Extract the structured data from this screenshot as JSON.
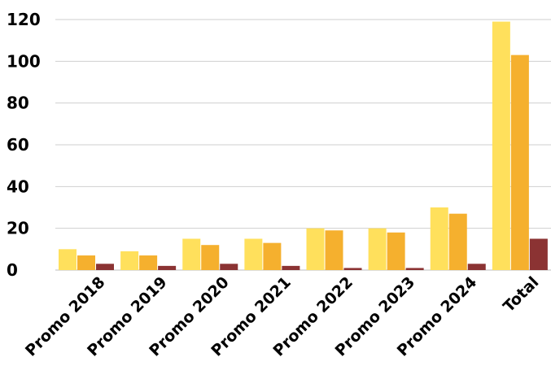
{
  "chart_data": {
    "type": "bar",
    "title": "",
    "xlabel": "",
    "ylabel": "",
    "categories": [
      "Promo 2018",
      "Promo 2019",
      "Promo 2020",
      "Promo 2021",
      "Promo 2022",
      "Promo 2023",
      "Promo 2024",
      "Total"
    ],
    "series": [
      {
        "values": [
          10,
          9,
          15,
          15,
          20,
          20,
          30,
          119
        ],
        "color": "#FFE05C"
      },
      {
        "values": [
          7,
          7,
          12,
          13,
          19,
          18,
          27,
          103
        ],
        "color": "#F5B02E"
      },
      {
        "values": [
          3,
          2,
          3,
          2,
          1,
          1,
          3,
          15
        ],
        "color": "#8B3333"
      }
    ],
    "ylim": [
      0,
      120
    ],
    "yticks": [
      0,
      20,
      40,
      60,
      80,
      100,
      120
    ],
    "grid": true,
    "legend": "none"
  }
}
